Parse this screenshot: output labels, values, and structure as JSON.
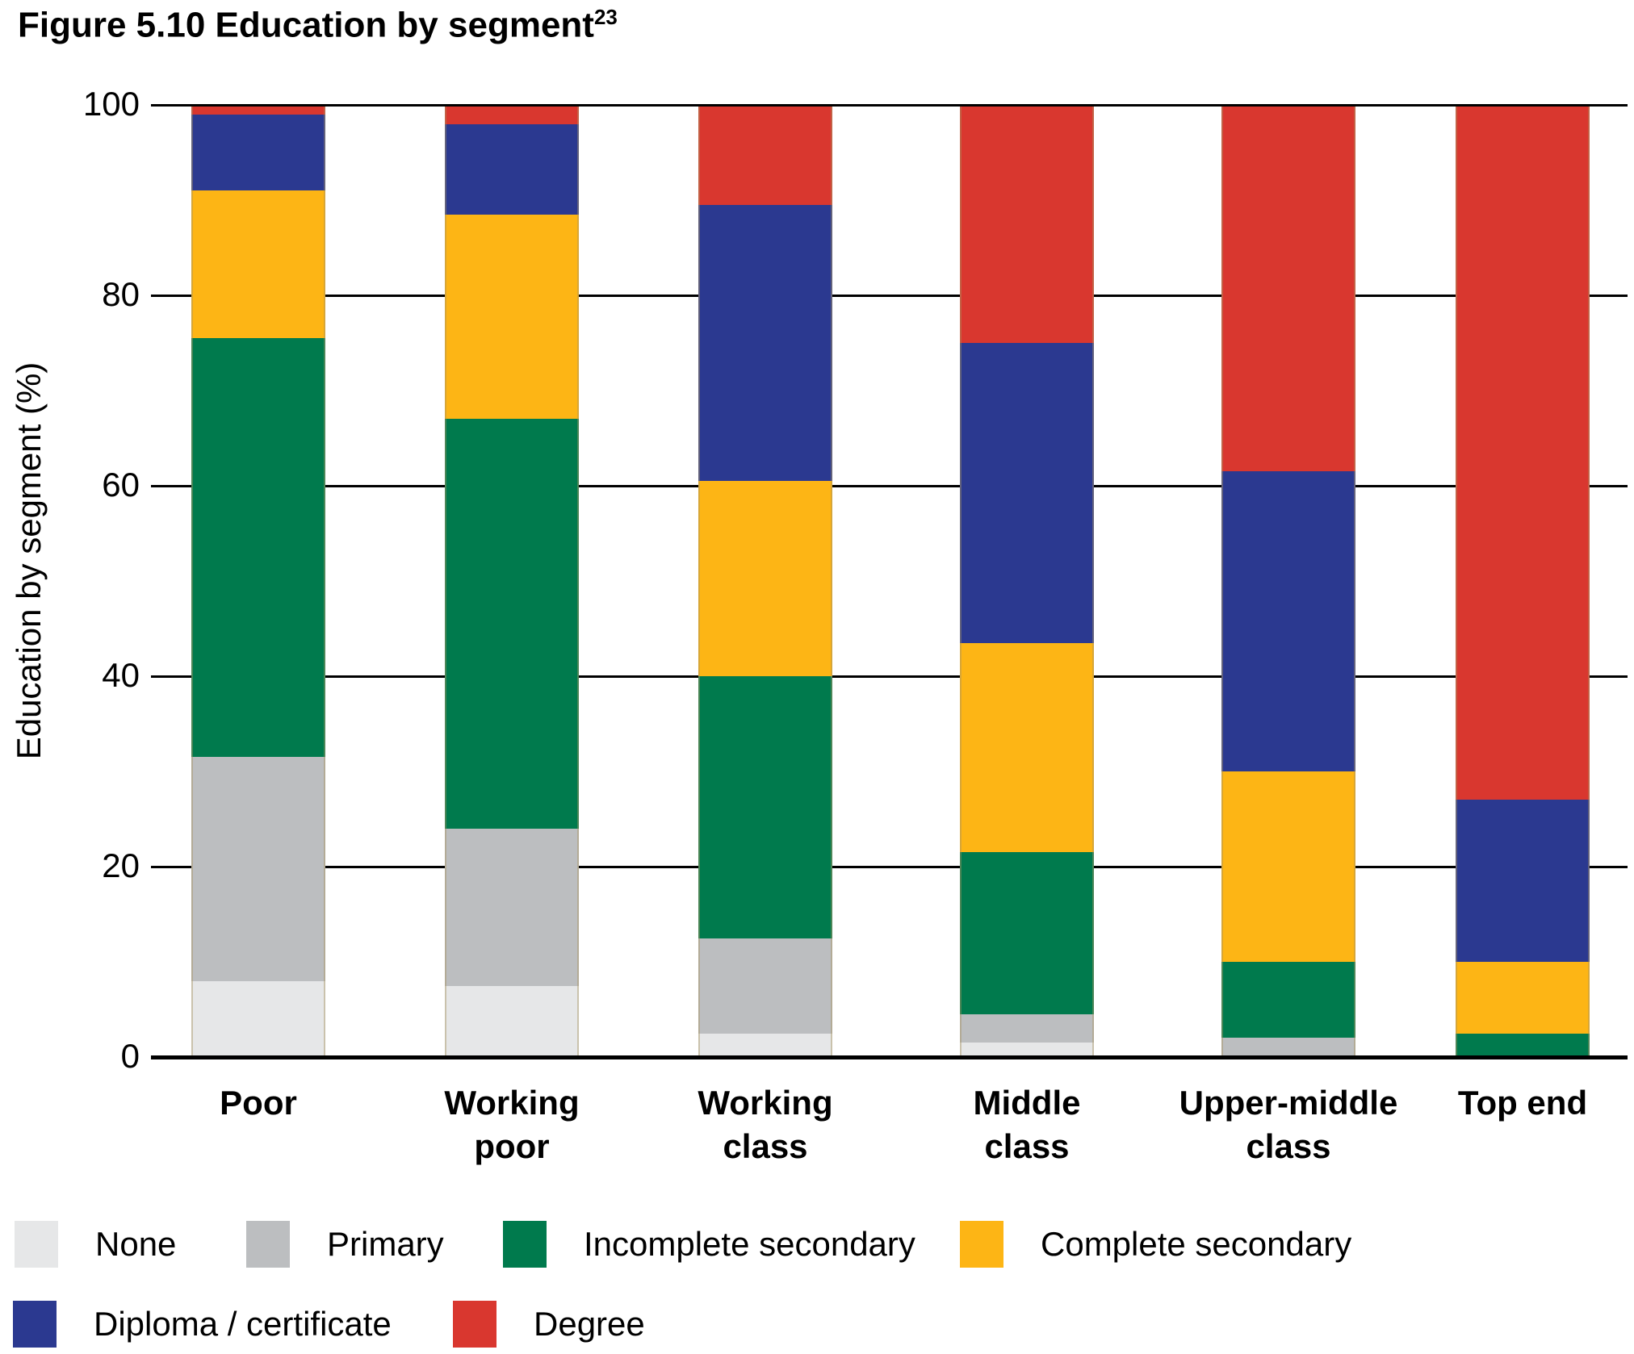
{
  "title": {
    "text": "Figure 5.10 Education by segment",
    "superscript": "23"
  },
  "axis": {
    "y_title": "Education by segment (%)",
    "y_ticks": [
      0,
      20,
      40,
      60,
      80,
      100
    ],
    "y_max": 100
  },
  "chart_data": {
    "type": "bar",
    "stacked": true,
    "title": "Figure 5.10 Education by segment",
    "ylabel": "Education by segment (%)",
    "ylim": [
      0,
      100
    ],
    "grid": true,
    "legend_position": "bottom",
    "categories": [
      "Poor",
      "Working poor",
      "Working class",
      "Middle class",
      "Upper-middle class",
      "Top end"
    ],
    "category_lines": [
      [
        "Poor"
      ],
      [
        "Working",
        "poor"
      ],
      [
        "Working",
        "class"
      ],
      [
        "Middle",
        "class"
      ],
      [
        "Upper-middle",
        "class"
      ],
      [
        "Top end"
      ]
    ],
    "series": [
      {
        "name": "None",
        "color": "#E6E7E8",
        "values": [
          8,
          7.5,
          2.5,
          1.5,
          0,
          0
        ]
      },
      {
        "name": "Primary",
        "color": "#BCBEC0",
        "values": [
          23.5,
          16.5,
          10,
          3,
          2,
          0
        ]
      },
      {
        "name": "Incomplete secondary",
        "color": "#007A4D",
        "values": [
          44,
          43,
          27.5,
          17,
          8,
          2.5
        ]
      },
      {
        "name": "Complete secondary",
        "color": "#FDB515",
        "values": [
          15.5,
          21.5,
          20.5,
          22,
          20,
          7.5
        ]
      },
      {
        "name": "Diploma / certificate",
        "color": "#2B3990",
        "values": [
          8,
          9.5,
          29,
          31.5,
          31.5,
          17
        ]
      },
      {
        "name": "Degree",
        "color": "#D9372F",
        "values": [
          1,
          2,
          10.5,
          25,
          38.5,
          73
        ]
      }
    ]
  },
  "legend": {
    "rows": [
      [
        "None",
        "Primary",
        "Incomplete secondary",
        "Complete secondary"
      ],
      [
        "Diploma / certificate",
        "Degree"
      ]
    ]
  }
}
